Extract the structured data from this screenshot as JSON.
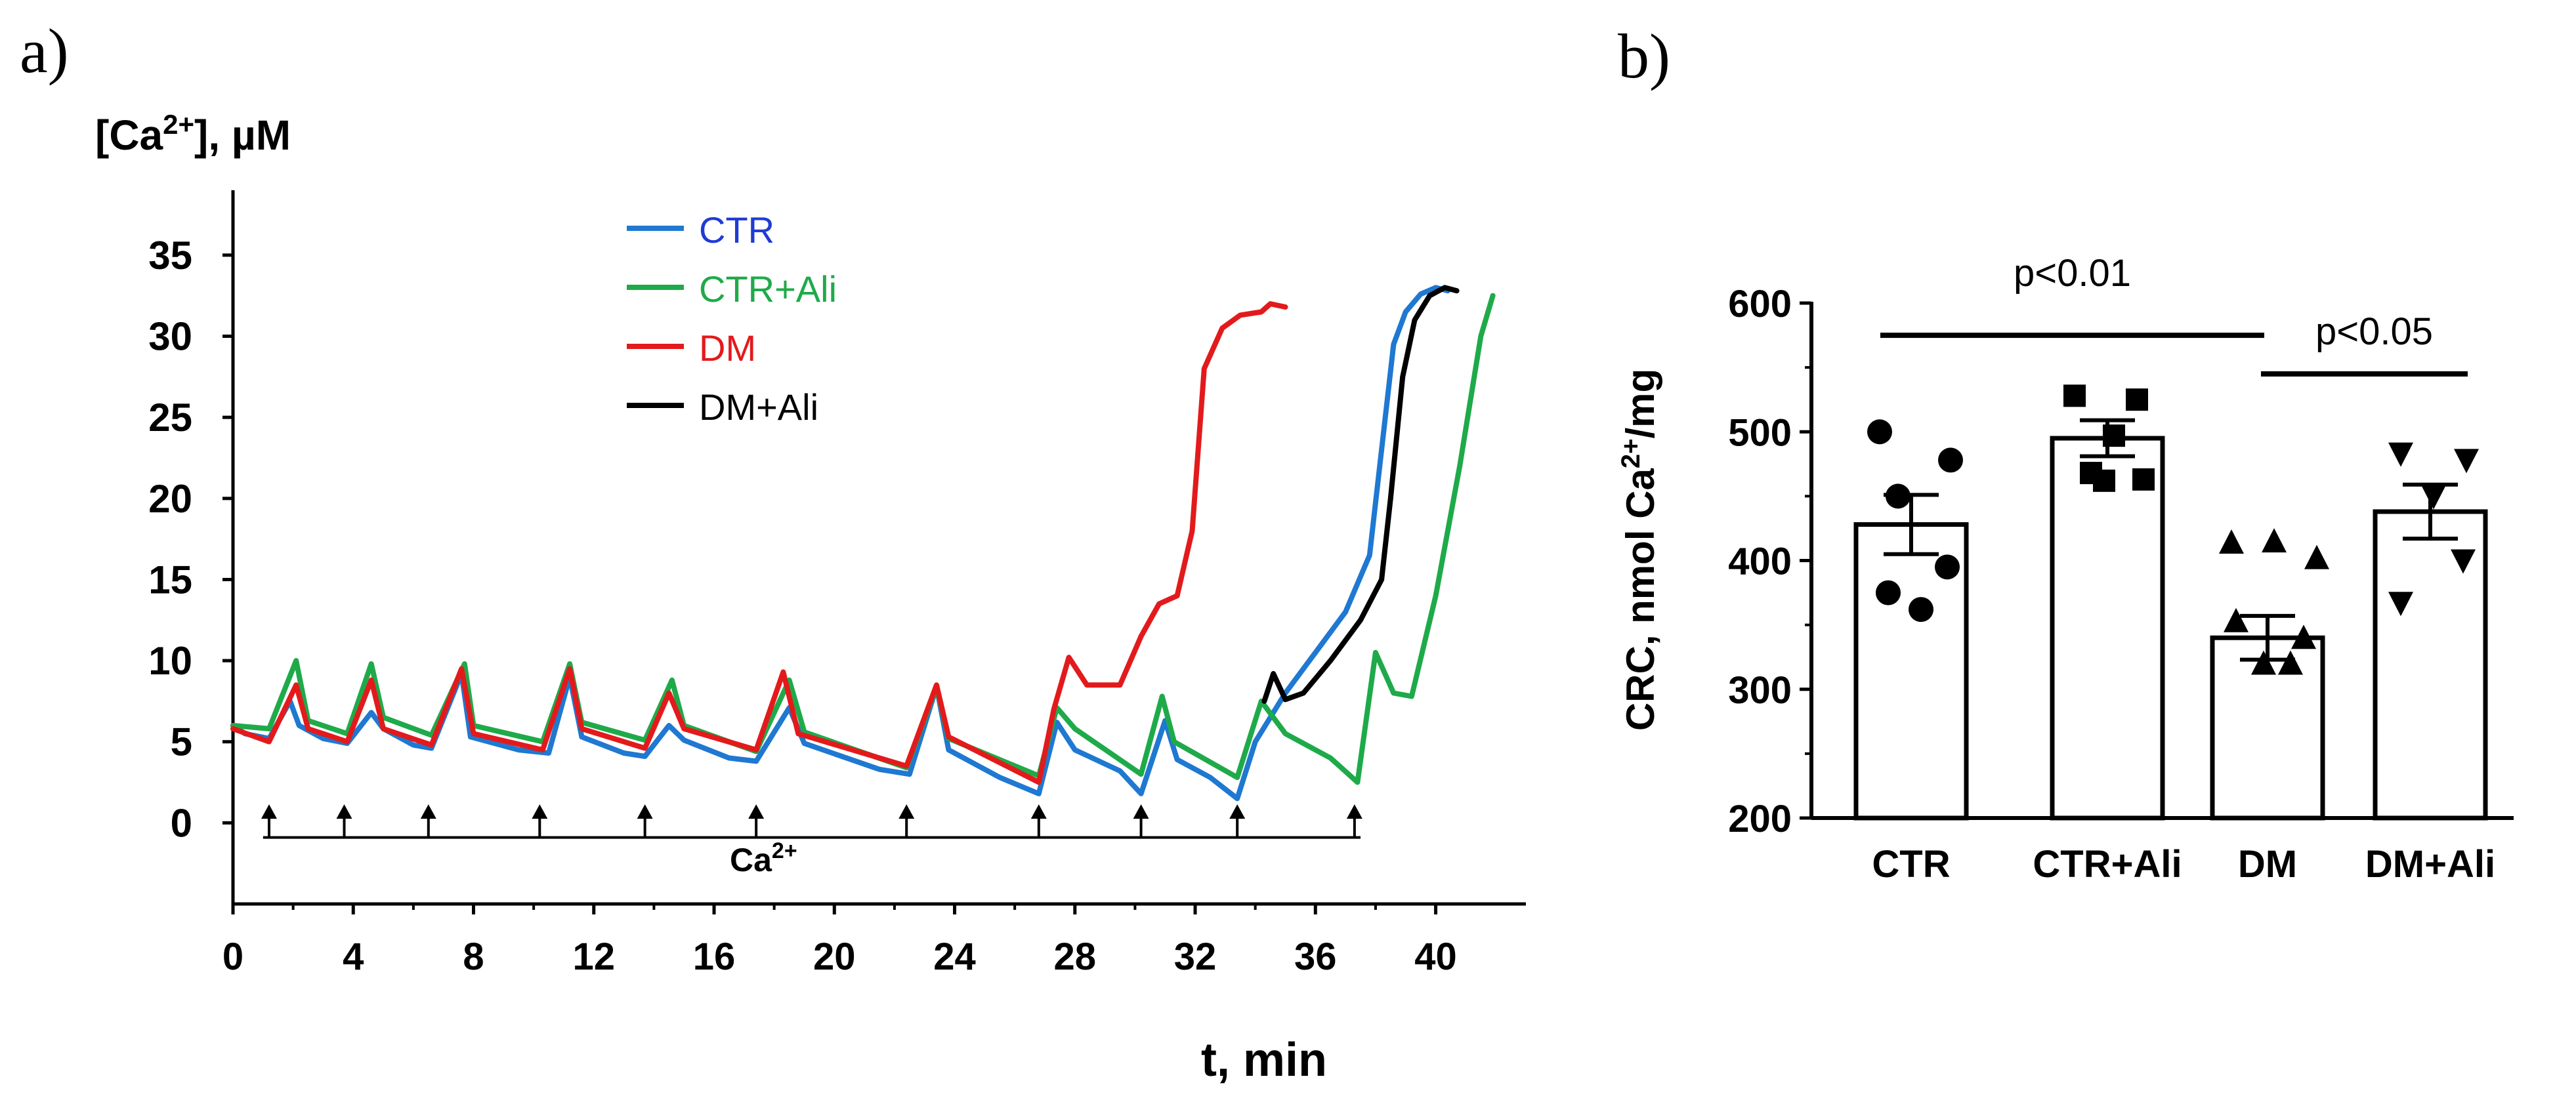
{
  "panel_a": {
    "panel_label": "a)",
    "ylabel_main": "[Ca",
    "ylabel_sup": "2+",
    "ylabel_tail": "], µM",
    "xlabel": "t, min",
    "calcium_label": "Ca",
    "calcium_sup": "2+"
  },
  "panel_b": {
    "panel_label": "b)",
    "ylabel_main": "CRC, nmol  Ca",
    "ylabel_sup": "2+",
    "ylabel_tail": "/mg",
    "sig1": "p<0.01",
    "sig2": "p<0.05"
  },
  "chart_data": [
    {
      "type": "line",
      "xlim": [
        0,
        43
      ],
      "ylim": [
        -5,
        39
      ],
      "x_ticks": [
        0,
        4,
        8,
        12,
        16,
        20,
        24,
        28,
        32,
        36,
        40
      ],
      "y_ticks": [
        0,
        5,
        10,
        15,
        20,
        25,
        30,
        35
      ],
      "legend_position": "top-center",
      "calcium_additions": [
        1.2,
        3.7,
        6.5,
        10.2,
        13.7,
        17.4,
        22.4,
        26.8,
        30.2,
        33.4,
        37.3
      ],
      "calcium_bar_range": [
        1.0,
        37.5
      ],
      "series": [
        {
          "name": "CTR",
          "color": "#1f78d1",
          "points": [
            [
              0,
              6.0
            ],
            [
              0.4,
              5.5
            ],
            [
              1.2,
              5.2
            ],
            [
              1.9,
              7.5
            ],
            [
              2.2,
              6.0
            ],
            [
              3.0,
              5.2
            ],
            [
              3.8,
              4.9
            ],
            [
              4.6,
              6.8
            ],
            [
              5.0,
              5.8
            ],
            [
              6.0,
              4.8
            ],
            [
              6.6,
              4.6
            ],
            [
              7.6,
              9.2
            ],
            [
              7.9,
              5.3
            ],
            [
              9.5,
              4.5
            ],
            [
              10.5,
              4.3
            ],
            [
              11.2,
              9.0
            ],
            [
              11.6,
              5.3
            ],
            [
              13.0,
              4.3
            ],
            [
              13.7,
              4.1
            ],
            [
              14.5,
              6.0
            ],
            [
              15.0,
              5.1
            ],
            [
              16.5,
              4.0
            ],
            [
              17.4,
              3.8
            ],
            [
              18.5,
              7.1
            ],
            [
              19.0,
              4.9
            ],
            [
              21.5,
              3.3
            ],
            [
              22.5,
              3.0
            ],
            [
              23.4,
              8.4
            ],
            [
              23.8,
              4.5
            ],
            [
              25.5,
              2.8
            ],
            [
              26.8,
              1.8
            ],
            [
              27.4,
              6.2
            ],
            [
              28.0,
              4.5
            ],
            [
              29.5,
              3.2
            ],
            [
              30.2,
              1.8
            ],
            [
              31.0,
              6.3
            ],
            [
              31.4,
              3.9
            ],
            [
              32.5,
              2.8
            ],
            [
              33.4,
              1.5
            ],
            [
              34.0,
              5.0
            ],
            [
              35.0,
              8.0
            ],
            [
              36.0,
              10.5
            ],
            [
              37.0,
              13.0
            ],
            [
              37.8,
              16.5
            ],
            [
              38.2,
              23.0
            ],
            [
              38.6,
              29.5
            ],
            [
              39.0,
              31.5
            ],
            [
              39.5,
              32.6
            ],
            [
              40.0,
              33.0
            ],
            [
              40.4,
              32.8
            ]
          ]
        },
        {
          "name": "CTR+Ali",
          "color": "#1faa4a",
          "points": [
            [
              0,
              6.0
            ],
            [
              1.2,
              5.8
            ],
            [
              2.1,
              10.0
            ],
            [
              2.5,
              6.3
            ],
            [
              3.8,
              5.5
            ],
            [
              4.6,
              9.8
            ],
            [
              5.0,
              6.5
            ],
            [
              6.6,
              5.4
            ],
            [
              7.7,
              9.8
            ],
            [
              8.0,
              6.0
            ],
            [
              10.3,
              5.0
            ],
            [
              11.2,
              9.8
            ],
            [
              11.6,
              6.2
            ],
            [
              13.7,
              5.1
            ],
            [
              14.6,
              8.8
            ],
            [
              15.0,
              6.0
            ],
            [
              17.4,
              4.4
            ],
            [
              18.5,
              8.8
            ],
            [
              19.0,
              5.6
            ],
            [
              22.4,
              3.4
            ],
            [
              23.4,
              8.4
            ],
            [
              23.8,
              5.2
            ],
            [
              26.8,
              2.9
            ],
            [
              27.4,
              7.1
            ],
            [
              28.0,
              5.8
            ],
            [
              30.2,
              3.0
            ],
            [
              30.9,
              7.8
            ],
            [
              31.3,
              5.0
            ],
            [
              33.4,
              2.8
            ],
            [
              34.2,
              7.5
            ],
            [
              35.0,
              5.5
            ],
            [
              36.5,
              4.0
            ],
            [
              37.4,
              2.5
            ],
            [
              38.0,
              10.5
            ],
            [
              38.6,
              8.0
            ],
            [
              39.2,
              7.8
            ],
            [
              40.0,
              14.0
            ],
            [
              40.8,
              22.0
            ],
            [
              41.5,
              30.0
            ],
            [
              41.9,
              32.5
            ]
          ]
        },
        {
          "name": "DM",
          "color": "#e31a1c",
          "points": [
            [
              0,
              5.8
            ],
            [
              1.2,
              5.0
            ],
            [
              2.1,
              8.5
            ],
            [
              2.5,
              5.8
            ],
            [
              3.8,
              5.0
            ],
            [
              4.6,
              8.8
            ],
            [
              5.0,
              5.8
            ],
            [
              6.6,
              4.8
            ],
            [
              7.6,
              9.5
            ],
            [
              8.0,
              5.5
            ],
            [
              10.3,
              4.5
            ],
            [
              11.2,
              9.5
            ],
            [
              11.6,
              5.8
            ],
            [
              13.7,
              4.6
            ],
            [
              14.5,
              8.0
            ],
            [
              15.0,
              5.8
            ],
            [
              17.4,
              4.5
            ],
            [
              18.3,
              9.3
            ],
            [
              18.8,
              5.5
            ],
            [
              22.4,
              3.5
            ],
            [
              23.4,
              8.5
            ],
            [
              23.8,
              5.3
            ],
            [
              26.8,
              2.5
            ],
            [
              27.3,
              7.0
            ],
            [
              27.8,
              10.2
            ],
            [
              28.4,
              8.5
            ],
            [
              29.5,
              8.5
            ],
            [
              30.2,
              11.5
            ],
            [
              30.8,
              13.5
            ],
            [
              31.4,
              14.0
            ],
            [
              31.9,
              18.0
            ],
            [
              32.3,
              28.0
            ],
            [
              32.9,
              30.5
            ],
            [
              33.5,
              31.3
            ],
            [
              34.2,
              31.5
            ],
            [
              34.5,
              32.0
            ],
            [
              35.0,
              31.8
            ]
          ]
        },
        {
          "name": "DM+Ali",
          "color": "#000000",
          "points": [
            [
              34.3,
              7.5
            ],
            [
              34.6,
              9.2
            ],
            [
              35.0,
              7.6
            ],
            [
              35.6,
              8.0
            ],
            [
              36.5,
              10.0
            ],
            [
              37.5,
              12.5
            ],
            [
              38.2,
              15.0
            ],
            [
              38.5,
              20.0
            ],
            [
              38.9,
              27.5
            ],
            [
              39.3,
              31.0
            ],
            [
              39.8,
              32.5
            ],
            [
              40.3,
              33.0
            ],
            [
              40.7,
              32.8
            ]
          ]
        }
      ]
    },
    {
      "type": "bar",
      "categories": [
        "CTR",
        "CTR+Ali",
        "DM",
        "DM+Ali"
      ],
      "values": [
        428,
        495,
        340,
        438
      ],
      "errors": [
        23,
        14,
        17,
        21
      ],
      "ylim": [
        200,
        600
      ],
      "y_ticks": [
        200,
        300,
        400,
        500,
        600
      ],
      "markers": [
        "circle",
        "square",
        "triangle-up",
        "triangle-down"
      ],
      "points": [
        [
          500,
          478,
          450,
          395,
          375,
          362
        ],
        [
          528,
          525,
          497,
          468,
          463,
          462
        ],
        [
          414,
          415,
          402,
          353,
          340,
          320,
          320
        ],
        [
          483,
          478,
          450,
          400,
          367
        ]
      ],
      "significance": [
        {
          "label": "p<0.01",
          "from": "CTR",
          "to": "DM",
          "y_value": 575
        },
        {
          "label": "p<0.05",
          "from": "DM",
          "to": "DM+Ali",
          "y_value": 545
        }
      ]
    }
  ]
}
